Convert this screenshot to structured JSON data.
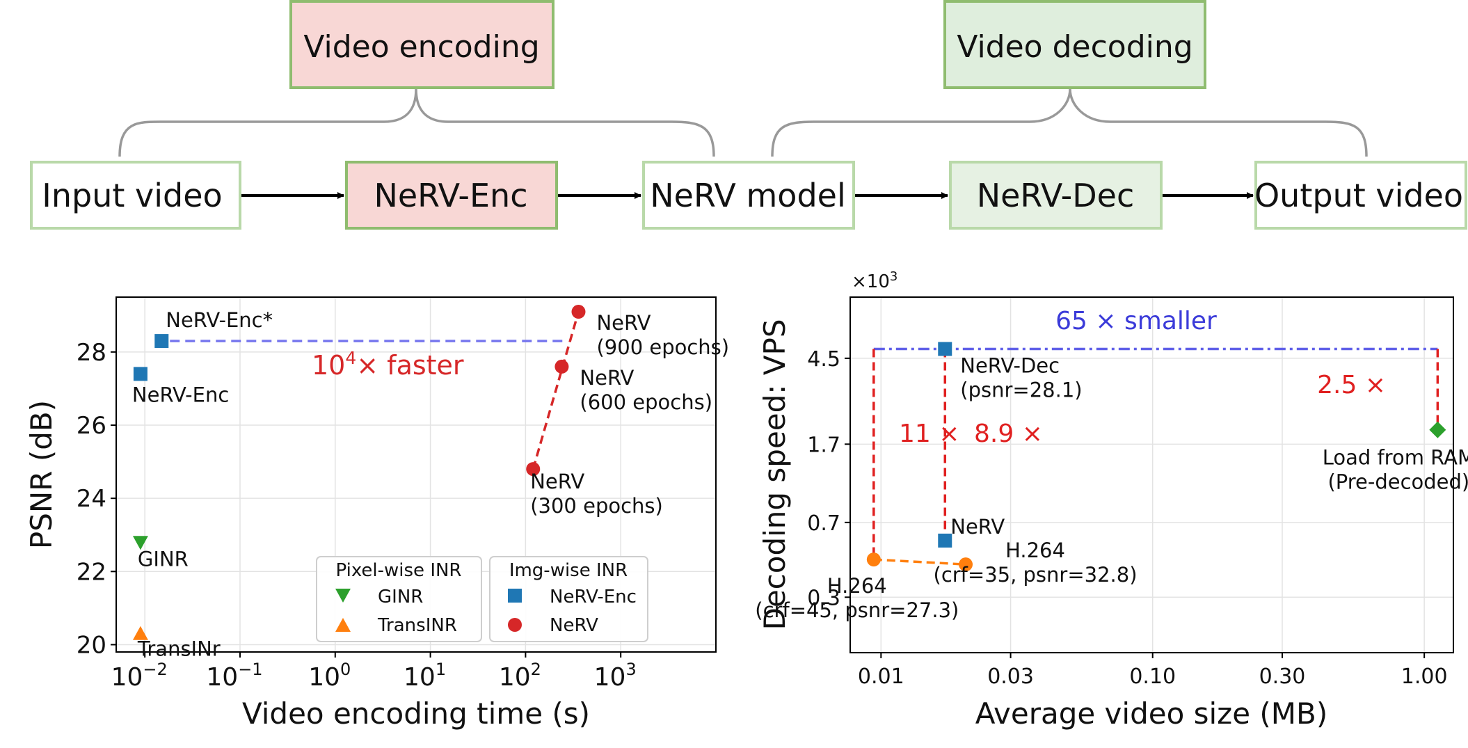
{
  "diagram": {
    "groups": [
      {
        "id": "encode",
        "label": "Video encoding",
        "fill": "#f8d7d5",
        "stroke": "#8fbc6f"
      },
      {
        "id": "decode",
        "label": "Video decoding",
        "fill": "#dfeedd",
        "stroke": "#8fbc6f"
      }
    ],
    "nodes": [
      {
        "id": "input",
        "label": "Input video",
        "fill": "#ffffff",
        "stroke": "#b9d9a9"
      },
      {
        "id": "enc",
        "label": "NeRV-Enc",
        "fill": "#f8d7d5",
        "stroke": "#8fbc6f"
      },
      {
        "id": "model",
        "label": "NeRV model",
        "fill": "#ffffff",
        "stroke": "#b9d9a9"
      },
      {
        "id": "dec",
        "label": "NeRV-Dec",
        "fill": "#e6f1e3",
        "stroke": "#b9d9a9"
      },
      {
        "id": "output",
        "label": "Output video",
        "fill": "#ffffff",
        "stroke": "#b9d9a9"
      }
    ]
  },
  "chart_data": [
    {
      "type": "scatter",
      "xlabel": "Video encoding time (s)",
      "ylabel": "PSNR (dB)",
      "xscale": "log",
      "xlim": [
        0.005,
        10000
      ],
      "ylim": [
        19.8,
        29.5
      ],
      "x_ticks": [
        {
          "value": 0.01,
          "base": "10",
          "exp": "−2"
        },
        {
          "value": 0.1,
          "base": "10",
          "exp": "−1"
        },
        {
          "value": 1,
          "base": "10",
          "exp": "0"
        },
        {
          "value": 10,
          "base": "10",
          "exp": "1"
        },
        {
          "value": 100,
          "base": "10",
          "exp": "2"
        },
        {
          "value": 1000,
          "base": "10",
          "exp": "3"
        }
      ],
      "y_ticks": [
        20,
        22,
        24,
        26,
        28
      ],
      "grid": true,
      "points": [
        {
          "name": "NeRV-Enc*",
          "x": 0.015,
          "y": 28.3,
          "marker": "square",
          "color": "#1f77b4",
          "label": "NeRV-Enc*"
        },
        {
          "name": "NeRV-Enc",
          "x": 0.009,
          "y": 27.4,
          "marker": "square",
          "color": "#1f77b4",
          "label": "NeRV-Enc"
        },
        {
          "name": "GINR",
          "x": 0.009,
          "y": 22.8,
          "marker": "triangle-down",
          "color": "#2ca02c",
          "label": "GINR"
        },
        {
          "name": "TransINR",
          "x": 0.009,
          "y": 20.3,
          "marker": "triangle-up",
          "color": "#ff7f0e",
          "label": "TransINr"
        },
        {
          "name": "NeRV (300 epochs)",
          "x": 120,
          "y": 24.8,
          "marker": "circle",
          "color": "#d62728",
          "label": [
            "NeRV",
            "(300 epochs)"
          ]
        },
        {
          "name": "NeRV (600 epochs)",
          "x": 240,
          "y": 27.6,
          "marker": "circle",
          "color": "#d62728",
          "label": [
            "NeRV",
            "(600 epochs)"
          ]
        },
        {
          "name": "NeRV (900 epochs)",
          "x": 360,
          "y": 29.1,
          "marker": "circle",
          "color": "#d62728",
          "label": [
            "NeRV",
            "(900 epochs)"
          ]
        }
      ],
      "annotations": [
        {
          "text": "×  faster",
          "base": "10",
          "exp": "4",
          "color": "#d62728"
        }
      ],
      "legends": [
        {
          "title": "Pixel-wise INR",
          "items": [
            {
              "label": "GINR",
              "marker": "triangle-down",
              "color": "#2ca02c"
            },
            {
              "label": "TransINR",
              "marker": "triangle-up",
              "color": "#ff7f0e"
            }
          ]
        },
        {
          "title": "Img-wise INR",
          "items": [
            {
              "label": "NeRV-Enc",
              "marker": "square",
              "color": "#1f77b4"
            },
            {
              "label": "NeRV",
              "marker": "circle",
              "color": "#d62728"
            }
          ]
        }
      ]
    },
    {
      "type": "scatter",
      "xlabel": "Average video size (MB)",
      "ylabel": "Decoding speed: VPS",
      "xscale": "log",
      "yscale": "log",
      "y_multiplier": "×10",
      "y_multiplier_exp": "3",
      "xlim": [
        0.0077,
        1.28
      ],
      "ylim": [
        0.16,
        9.0
      ],
      "x_ticks": [
        "0.01",
        "0.03",
        "0.10",
        "0.30",
        "1.00"
      ],
      "y_ticks": [
        "0.3",
        "0.7",
        "1.7",
        "4.5"
      ],
      "grid": true,
      "points": [
        {
          "name": "NeRV-Dec",
          "x": 0.0172,
          "y": 5.0,
          "marker": "square",
          "color": "#1f77b4",
          "label": [
            "NeRV-Dec",
            "(psnr=28.1)"
          ]
        },
        {
          "name": "NeRV",
          "x": 0.0172,
          "y": 0.57,
          "marker": "square",
          "color": "#1f77b4",
          "label": "NeRV"
        },
        {
          "name": "Load from RAM",
          "x": 1.12,
          "y": 2.0,
          "marker": "diamond",
          "color": "#2ca02c",
          "label": [
            "Load from RAM",
            "(Pre-decoded)"
          ]
        },
        {
          "name": "H.264 crf45",
          "x": 0.0094,
          "y": 0.46,
          "marker": "circle",
          "color": "#ff7f0e",
          "label": [
            "H.264",
            "(crf=45, psnr=27.3)"
          ]
        },
        {
          "name": "H.264 crf35",
          "x": 0.0205,
          "y": 0.435,
          "marker": "circle",
          "color": "#ff7f0e",
          "label": [
            "H.264",
            "(crf=35, psnr=32.8)"
          ]
        }
      ],
      "annotations": [
        {
          "text": "65 ×  smaller",
          "color": "#3b3bd9"
        },
        {
          "text": "2.5 ×",
          "color": "#e02020"
        },
        {
          "text": "11 ×",
          "color": "#e02020"
        },
        {
          "text": "8.9 ×",
          "color": "#e02020"
        }
      ]
    }
  ]
}
